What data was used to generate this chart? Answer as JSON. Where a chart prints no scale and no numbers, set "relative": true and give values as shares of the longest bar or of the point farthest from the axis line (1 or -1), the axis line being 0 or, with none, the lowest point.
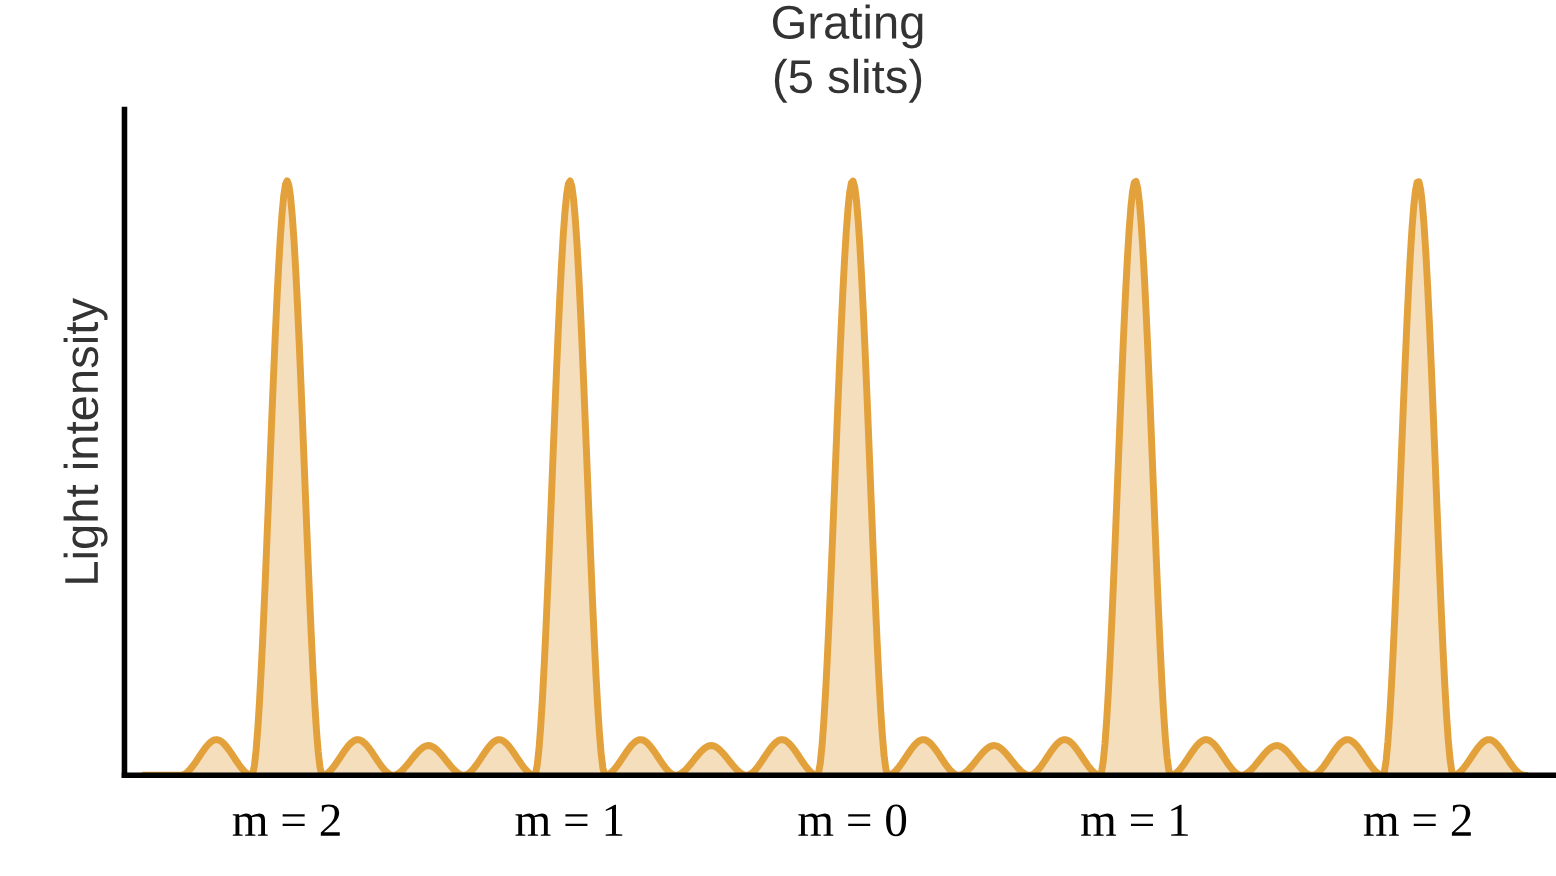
{
  "chart_data": {
    "type": "area",
    "title": "Grating\n(5 slits)",
    "ylabel": "Light intensity",
    "relative": true,
    "legend": false,
    "grid": false,
    "categories": [
      null,
      null,
      null,
      null,
      "m = 2",
      null,
      null,
      null,
      null,
      null,
      null,
      null,
      "m = 1",
      null,
      null,
      null,
      null,
      null,
      null,
      null,
      "m = 0",
      null,
      null,
      null,
      null,
      null,
      null,
      null,
      "m = 1",
      null,
      null,
      null,
      null,
      null,
      null,
      null,
      "m = 2",
      null,
      null,
      null
    ],
    "series": [
      {
        "color": "#e3a13c",
        "values": [
          0,
          0,
          0.06,
          0,
          1,
          0,
          0.06,
          0,
          0.05,
          0,
          0.06,
          0,
          1,
          0,
          0.06,
          0,
          0.05,
          0,
          0.06,
          0,
          1,
          0,
          0.06,
          0,
          0.05,
          0,
          0.06,
          0,
          1,
          0,
          0.06,
          0,
          0.05,
          0,
          0.06,
          0,
          1,
          0,
          0.06,
          0
        ]
      }
    ]
  }
}
